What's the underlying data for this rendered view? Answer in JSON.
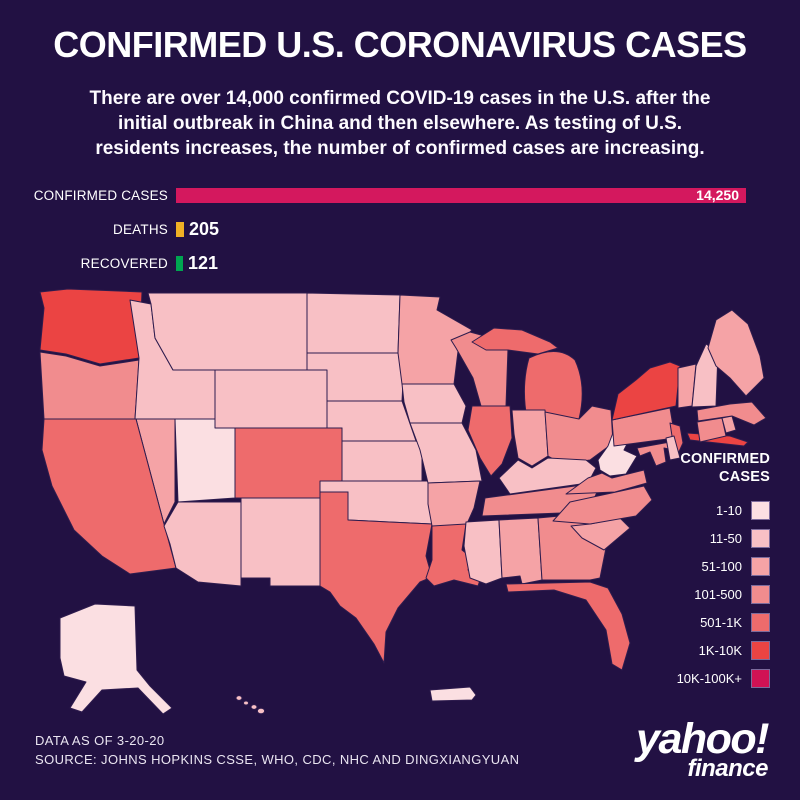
{
  "background": "#221143",
  "title": "CONFIRMED U.S. CORONAVIRUS CASES",
  "subtitle": {
    "line1": "There are over 14,000 confirmed COVID-19 cases in the U.S. after the",
    "line2": "initial outbreak in China and then elsewhere. As testing of U.S.",
    "line3": "residents increases, the number of confirmed cases are increasing."
  },
  "footer": {
    "line1": "DATA AS OF 3-20-20",
    "line2": "SOURCE:  JOHNS HOPKINS CSSE, WHO, CDC, NHC AND DINGXIANGYUAN"
  },
  "logo": {
    "brand": "yahoo!",
    "sub": "finance"
  },
  "chart_data": [
    {
      "type": "bar",
      "orientation": "horizontal",
      "categories": [
        "CONFIRMED CASES",
        "DEATHS",
        "RECOVERED"
      ],
      "values": [
        14250,
        205,
        121
      ],
      "data_labels": [
        "14,250",
        "205",
        "121"
      ],
      "colors": [
        "#d4185e",
        "#f0b125",
        "#00a551"
      ],
      "xlim": [
        0,
        14250
      ],
      "grid": false,
      "legend_position": "none"
    },
    {
      "type": "heatmap",
      "subtype": "us-state-choropleth",
      "title": "CONFIRMED CASES",
      "legend_title_lines": [
        "CONFIRMED",
        "CASES"
      ],
      "legend_position": "right",
      "bins": [
        "1-10",
        "11-50",
        "51-100",
        "101-500",
        "501-1K",
        "1K-10K",
        "10K-100K+"
      ],
      "bin_colors": [
        "#fbdfe2",
        "#f8c0c5",
        "#f5a3a6",
        "#f18c8e",
        "#ee6b6c",
        "#eb4443",
        "#d01254"
      ],
      "state_bins": {
        "WA": "1K-10K",
        "OR": "101-500",
        "CA": "501-1K",
        "NV": "51-100",
        "ID": "11-50",
        "MT": "11-50",
        "WY": "11-50",
        "UT": "1-10",
        "CO": "501-1K",
        "AZ": "11-50",
        "NM": "11-50",
        "ND": "11-50",
        "SD": "11-50",
        "NE": "11-50",
        "KS": "11-50",
        "OK": "11-50",
        "TX": "501-1K",
        "MN": "51-100",
        "IA": "11-50",
        "MO": "11-50",
        "AR": "51-100",
        "LA": "501-1K",
        "WI": "101-500",
        "IL": "501-1K",
        "MI": "501-1K",
        "IN": "51-100",
        "OH": "101-500",
        "KY": "11-50",
        "TN": "101-500",
        "MS": "11-50",
        "AL": "51-100",
        "GA": "101-500",
        "FL": "501-1K",
        "SC": "51-100",
        "NC": "101-500",
        "VA": "101-500",
        "WV": "1-10",
        "MD": "101-500",
        "DE": "11-50",
        "NJ": "501-1K",
        "PA": "101-500",
        "NY": "1K-10K",
        "CT": "101-500",
        "RI": "51-100",
        "MA": "101-500",
        "VT": "51-100",
        "NH": "11-50",
        "ME": "51-100",
        "AK": "1-10",
        "HI": "11-50",
        "PR": "1-10"
      }
    }
  ]
}
